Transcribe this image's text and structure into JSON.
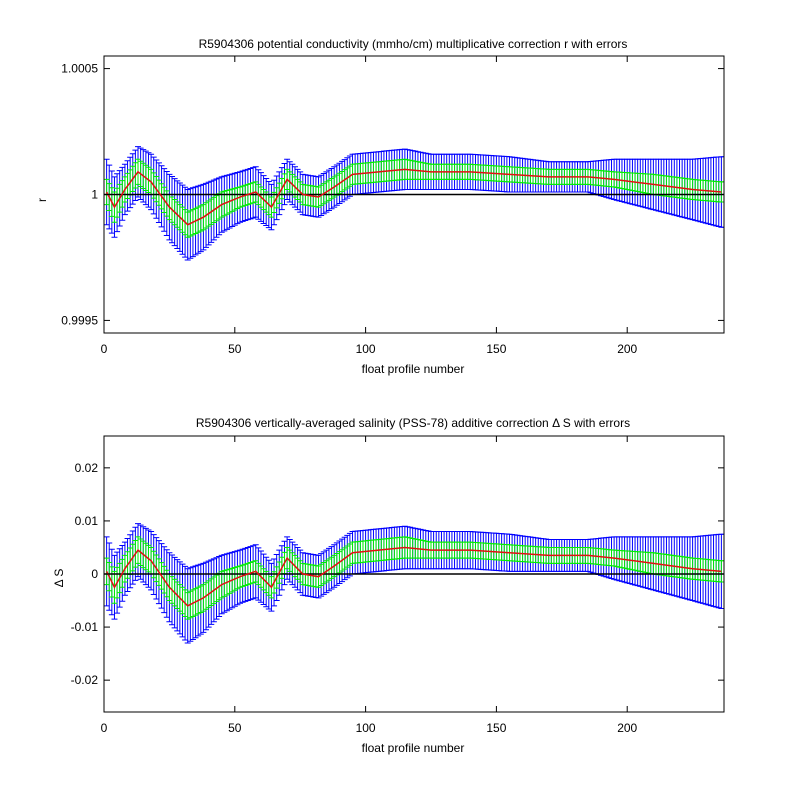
{
  "chart_data": [
    {
      "type": "line",
      "title": "R5904306 potential conductivity (mmho/cm) multiplicative correction r with errors",
      "xlabel": "float profile number",
      "ylabel": "r",
      "xlim": [
        0,
        237
      ],
      "ylim": [
        0.99945,
        1.00055
      ],
      "xticks": [
        0,
        50,
        100,
        150,
        200
      ],
      "xtick_labels": [
        "0",
        "50",
        "100",
        "150",
        "200"
      ],
      "yticks": [
        0.9995,
        1,
        1.0005
      ],
      "ytick_labels": [
        "0.9995",
        "1",
        "1.0005"
      ],
      "reference_line": 1,
      "grid": false,
      "legend": "none",
      "colors": {
        "correction": "#e01010",
        "error_inner": "#00ee00",
        "error_outer": "#0000ff",
        "reference": "#000000"
      },
      "x": [
        1,
        4,
        8,
        13,
        18,
        25,
        32,
        38,
        45,
        52,
        58,
        64,
        70,
        76,
        82,
        88,
        95,
        105,
        115,
        125,
        140,
        155,
        170,
        185,
        195,
        210,
        225,
        236
      ],
      "series": [
        {
          "values": [
            1.00001,
            0.99995,
            1.00002,
            1.00009,
            1.00005,
            0.99995,
            0.99988,
            0.99991,
            0.99996,
            0.99999,
            1.00001,
            0.99995,
            1.00006,
            1.0,
            0.99999,
            1.00003,
            1.00008,
            1.00009,
            1.0001,
            1.00009,
            1.00009,
            1.00008,
            1.00007,
            1.00007,
            1.00006,
            1.00004,
            1.00002,
            1.00001
          ]
        }
      ],
      "error_inner": [
        5e-05,
        6e-05,
        5e-05,
        5e-05,
        5e-05,
        5e-05,
        5e-05,
        5e-05,
        5e-05,
        4e-05,
        4e-05,
        4e-05,
        4e-05,
        4e-05,
        4e-05,
        4e-05,
        4e-05,
        4e-05,
        4e-05,
        3e-05,
        3e-05,
        3e-05,
        3e-05,
        3e-05,
        3e-05,
        4e-05,
        4e-05,
        4e-05
      ],
      "error_outer": [
        0.00013,
        0.00012,
        0.0001,
        0.0001,
        0.00011,
        0.00013,
        0.00014,
        0.00013,
        0.00011,
        0.0001,
        0.0001,
        9e-05,
        8e-05,
        8e-05,
        8e-05,
        8e-05,
        8e-05,
        8e-05,
        8e-05,
        7e-05,
        7e-05,
        7e-05,
        6e-05,
        6e-05,
        8e-05,
        0.0001,
        0.00012,
        0.00014
      ]
    },
    {
      "type": "line",
      "title": "R5904306 vertically-averaged salinity (PSS-78) additive correction Δ S with errors",
      "xlabel": "float profile number",
      "ylabel": "Δ S",
      "xlim": [
        0,
        237
      ],
      "ylim": [
        -0.026,
        0.026
      ],
      "xticks": [
        0,
        50,
        100,
        150,
        200
      ],
      "xtick_labels": [
        "0",
        "50",
        "100",
        "150",
        "200"
      ],
      "yticks": [
        -0.02,
        -0.01,
        0,
        0.01,
        0.02
      ],
      "ytick_labels": [
        "-0.02",
        "-0.01",
        "0",
        "0.01",
        "0.02"
      ],
      "reference_line": 0,
      "grid": false,
      "legend": "none",
      "colors": {
        "correction": "#e01010",
        "error_inner": "#00ee00",
        "error_outer": "#0000ff",
        "reference": "#000000"
      },
      "x": [
        1,
        4,
        8,
        13,
        18,
        25,
        32,
        38,
        45,
        52,
        58,
        64,
        70,
        76,
        82,
        88,
        95,
        105,
        115,
        125,
        140,
        155,
        170,
        185,
        195,
        210,
        225,
        236
      ],
      "series": [
        {
          "values": [
            0.0005,
            -0.0025,
            0.001,
            0.0045,
            0.0025,
            -0.0025,
            -0.006,
            -0.0045,
            -0.002,
            -0.0005,
            0.0005,
            -0.0025,
            0.003,
            0.0,
            -0.0005,
            0.0015,
            0.004,
            0.0045,
            0.005,
            0.0045,
            0.0045,
            0.004,
            0.0035,
            0.0035,
            0.003,
            0.002,
            0.001,
            0.0005
          ]
        }
      ],
      "error_inner": [
        0.0025,
        0.003,
        0.0025,
        0.0025,
        0.0025,
        0.0025,
        0.0025,
        0.0025,
        0.0025,
        0.002,
        0.002,
        0.002,
        0.002,
        0.002,
        0.002,
        0.002,
        0.002,
        0.002,
        0.002,
        0.0015,
        0.0015,
        0.0015,
        0.0015,
        0.0015,
        0.0015,
        0.002,
        0.002,
        0.002
      ],
      "error_outer": [
        0.0065,
        0.006,
        0.005,
        0.005,
        0.0055,
        0.0065,
        0.007,
        0.0065,
        0.0055,
        0.005,
        0.005,
        0.0045,
        0.004,
        0.004,
        0.004,
        0.004,
        0.004,
        0.004,
        0.004,
        0.0035,
        0.0035,
        0.0035,
        0.003,
        0.003,
        0.004,
        0.005,
        0.006,
        0.007
      ]
    }
  ]
}
